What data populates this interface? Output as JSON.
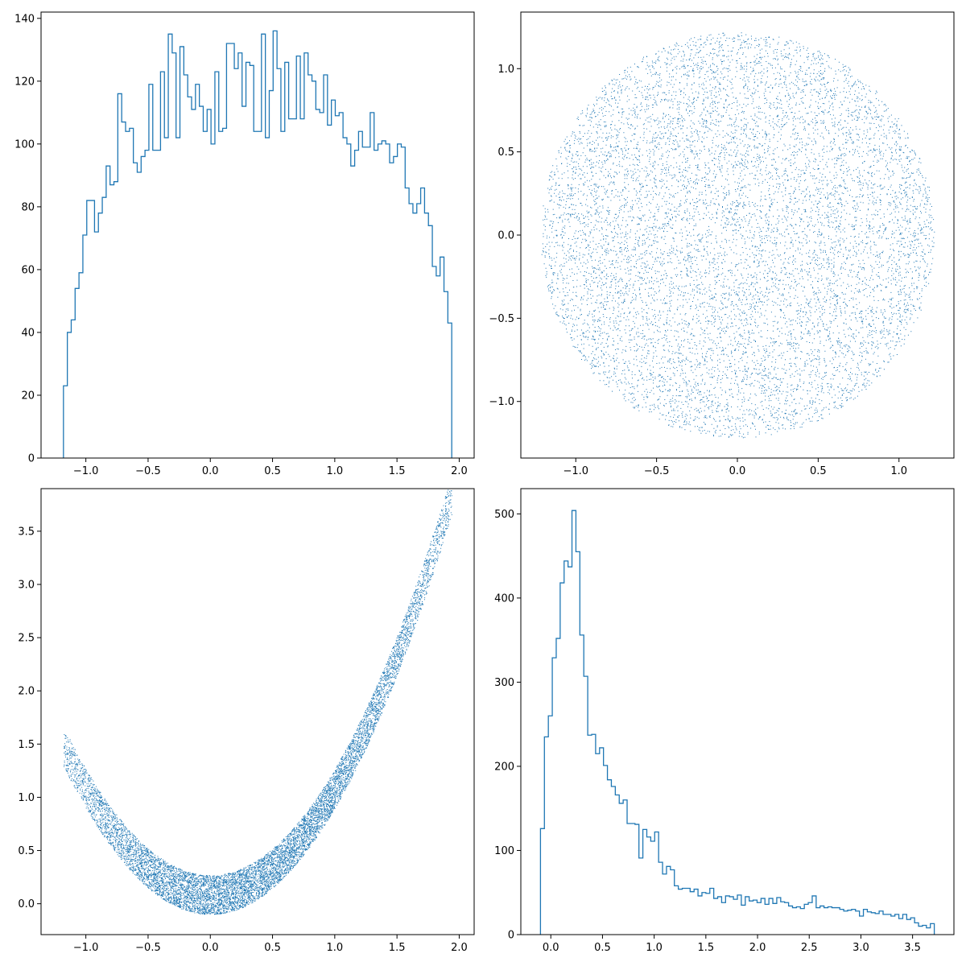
{
  "figure": {
    "background": "#ffffff",
    "series_color": "#1f77b4"
  },
  "chart_data": [
    {
      "type": "histogram",
      "bins": 100,
      "xlim": [
        -1.36,
        2.12
      ],
      "ylim": [
        0,
        142
      ],
      "xticks": [
        -1.0,
        -0.5,
        0.0,
        0.5,
        1.0,
        1.5,
        2.0
      ],
      "xtick_labels": [
        "−1.0",
        "−0.5",
        "0.0",
        "0.5",
        "1.0",
        "1.5",
        "2.0"
      ],
      "yticks": [
        0,
        20,
        40,
        60,
        80,
        100,
        120,
        140
      ],
      "ytick_labels": [
        "0",
        "20",
        "40",
        "60",
        "80",
        "100",
        "120",
        "140"
      ],
      "bin_range": [
        -1.18,
        1.94
      ],
      "counts": [
        23,
        40,
        44,
        54,
        59,
        71,
        82,
        82,
        72,
        78,
        83,
        93,
        87,
        88,
        116,
        107,
        104,
        105,
        94,
        91,
        96,
        98,
        119,
        98,
        98,
        123,
        102,
        135,
        129,
        102,
        131,
        122,
        115,
        111,
        119,
        112,
        104,
        111,
        100,
        123,
        104,
        105,
        132,
        132,
        124,
        129,
        112,
        126,
        125,
        104,
        104,
        135,
        102,
        117,
        136,
        124,
        104,
        126,
        108,
        108,
        128,
        108,
        129,
        122,
        120,
        111,
        110,
        122,
        106,
        114,
        109,
        110,
        102,
        100,
        93,
        98,
        104,
        99,
        99,
        110,
        98,
        100,
        101,
        100,
        94,
        96,
        100,
        99,
        86,
        81,
        78,
        81,
        86,
        78,
        74,
        61,
        58,
        64,
        53,
        43
      ]
    },
    {
      "type": "scatter",
      "description_shape": "uniform disk of radius 1.22 centered at origin",
      "n_points": 10000,
      "xlim": [
        -1.34,
        1.34
      ],
      "ylim": [
        -1.34,
        1.34
      ],
      "xticks": [
        -1.0,
        -0.5,
        0.0,
        0.5,
        1.0
      ],
      "xtick_labels": [
        "−1.0",
        "−0.5",
        "0.0",
        "0.5",
        "1.0"
      ],
      "yticks": [
        -1.0,
        -0.5,
        0.0,
        0.5,
        1.0
      ],
      "ytick_labels": [
        "−1.0",
        "−0.5",
        "0.0",
        "0.5",
        "1.0"
      ]
    },
    {
      "type": "scatter",
      "description_shape": "parabolic band y = x^2 + uniform offset in [-0.1, 0.27], x from -1.18 to 1.94",
      "n_points": 10000,
      "xlim": [
        -1.36,
        2.12
      ],
      "ylim": [
        -0.29,
        3.9
      ],
      "xticks": [
        -1.0,
        -0.5,
        0.0,
        0.5,
        1.0,
        1.5,
        2.0
      ],
      "xtick_labels": [
        "−1.0",
        "−0.5",
        "0.0",
        "0.5",
        "1.0",
        "1.5",
        "2.0"
      ],
      "yticks": [
        0.0,
        0.5,
        1.0,
        1.5,
        2.0,
        2.5,
        3.0,
        3.5
      ],
      "ytick_labels": [
        "0.0",
        "0.5",
        "1.0",
        "1.5",
        "2.0",
        "2.5",
        "3.0",
        "3.5"
      ]
    },
    {
      "type": "histogram",
      "bins": 100,
      "xlim": [
        -0.29,
        3.9
      ],
      "ylim": [
        0,
        530
      ],
      "xticks": [
        0.0,
        0.5,
        1.0,
        1.5,
        2.0,
        2.5,
        3.0,
        3.5
      ],
      "xtick_labels": [
        "0.0",
        "0.5",
        "1.0",
        "1.5",
        "2.0",
        "2.5",
        "3.0",
        "3.5"
      ],
      "yticks": [
        0,
        100,
        200,
        300,
        400,
        500
      ],
      "ytick_labels": [
        "0",
        "100",
        "200",
        "300",
        "400",
        "500"
      ],
      "bin_range": [
        -0.1,
        3.71
      ],
      "counts": [
        126,
        235,
        260,
        329,
        352,
        418,
        444,
        437,
        504,
        455,
        356,
        307,
        237,
        238,
        215,
        222,
        201,
        184,
        176,
        166,
        156,
        160,
        132,
        132,
        131,
        91,
        125,
        116,
        111,
        122,
        86,
        72,
        81,
        77,
        58,
        54,
        55,
        55,
        51,
        54,
        46,
        50,
        49,
        55,
        43,
        45,
        38,
        46,
        45,
        42,
        47,
        35,
        45,
        40,
        41,
        38,
        43,
        36,
        43,
        37,
        44,
        39,
        38,
        34,
        32,
        33,
        31,
        36,
        38,
        46,
        32,
        34,
        32,
        33,
        32,
        32,
        30,
        28,
        29,
        30,
        28,
        22,
        30,
        27,
        26,
        25,
        28,
        24,
        24,
        22,
        24,
        19,
        24,
        18,
        20,
        14,
        10,
        11,
        8,
        13
      ]
    }
  ]
}
